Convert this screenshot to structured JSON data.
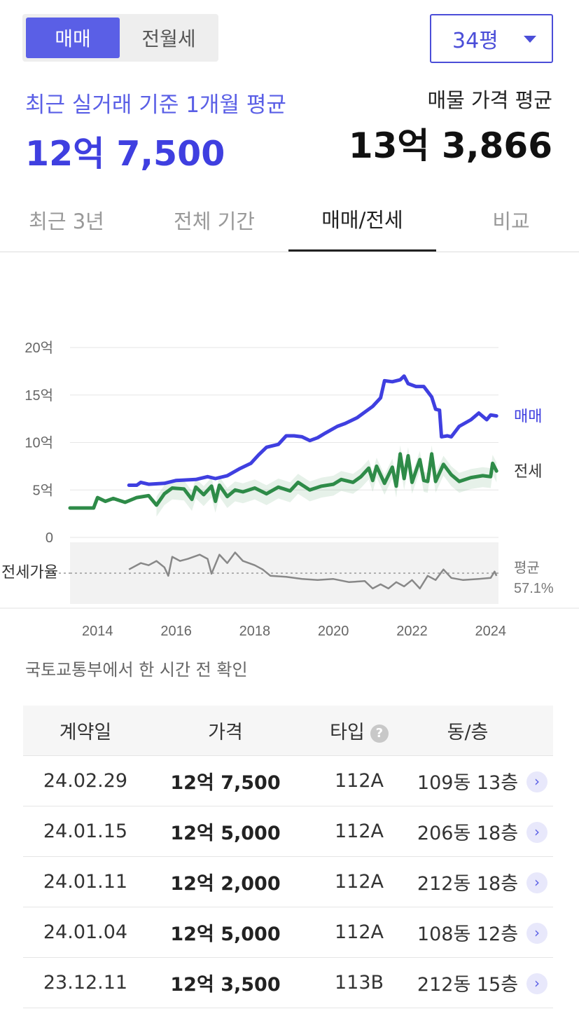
{
  "trade_toggle": {
    "active": "매매",
    "inactive": "전월세"
  },
  "size_select": {
    "value": "34평"
  },
  "summary": {
    "recent_label": "최근 실거래 기준 1개월 평균",
    "recent_value": "12억 7,500",
    "listing_label": "매물 가격 평균",
    "listing_value": "13억 3,866"
  },
  "tabs": [
    {
      "label": "최근 3년"
    },
    {
      "label": "전체 기간"
    },
    {
      "label": "매매/전세"
    },
    {
      "label": "비교"
    }
  ],
  "chart_data": {
    "type": "line",
    "y_ticks": [
      "20억",
      "15억",
      "10억",
      "5억",
      "0"
    ],
    "ylim": [
      0,
      20
    ],
    "y_unit": "억",
    "x_ticks": [
      "2014",
      "2016",
      "2018",
      "2020",
      "2022",
      "2024"
    ],
    "xlim": [
      2013.3,
      2024.2
    ],
    "grid": true,
    "series": [
      {
        "name": "매매",
        "color": "#3f3fe0",
        "points": [
          [
            2014.8,
            5.5
          ],
          [
            2015.0,
            5.5
          ],
          [
            2015.1,
            5.8
          ],
          [
            2015.3,
            5.6
          ],
          [
            2015.7,
            5.7
          ],
          [
            2016.0,
            6.0
          ],
          [
            2016.5,
            6.1
          ],
          [
            2016.8,
            6.4
          ],
          [
            2017.0,
            6.2
          ],
          [
            2017.3,
            6.5
          ],
          [
            2017.6,
            7.2
          ],
          [
            2017.9,
            7.8
          ],
          [
            2018.1,
            8.7
          ],
          [
            2018.3,
            9.5
          ],
          [
            2018.6,
            9.8
          ],
          [
            2018.8,
            10.7
          ],
          [
            2019.0,
            10.7
          ],
          [
            2019.2,
            10.6
          ],
          [
            2019.4,
            10.2
          ],
          [
            2019.6,
            10.5
          ],
          [
            2019.8,
            11.0
          ],
          [
            2020.1,
            11.7
          ],
          [
            2020.3,
            12.0
          ],
          [
            2020.6,
            12.6
          ],
          [
            2020.8,
            13.2
          ],
          [
            2021.0,
            13.8
          ],
          [
            2021.2,
            14.7
          ],
          [
            2021.3,
            16.5
          ],
          [
            2021.5,
            16.4
          ],
          [
            2021.7,
            16.6
          ],
          [
            2021.8,
            17.0
          ],
          [
            2021.9,
            16.2
          ],
          [
            2022.1,
            15.9
          ],
          [
            2022.3,
            15.9
          ],
          [
            2022.5,
            14.8
          ],
          [
            2022.6,
            13.5
          ],
          [
            2022.7,
            13.4
          ],
          [
            2022.75,
            10.6
          ],
          [
            2022.9,
            10.7
          ],
          [
            2023.0,
            10.6
          ],
          [
            2023.2,
            11.7
          ],
          [
            2023.5,
            12.4
          ],
          [
            2023.7,
            13.1
          ],
          [
            2023.9,
            12.4
          ],
          [
            2024.0,
            12.9
          ],
          [
            2024.15,
            12.8
          ]
        ]
      },
      {
        "name": "전세",
        "color": "#2e8b48",
        "points": [
          [
            2013.3,
            3.1
          ],
          [
            2013.9,
            3.1
          ],
          [
            2014.0,
            4.2
          ],
          [
            2014.2,
            3.8
          ],
          [
            2014.4,
            4.1
          ],
          [
            2014.7,
            3.7
          ],
          [
            2015.0,
            4.2
          ],
          [
            2015.3,
            4.4
          ],
          [
            2015.5,
            3.4
          ],
          [
            2015.7,
            4.6
          ],
          [
            2015.9,
            5.2
          ],
          [
            2016.2,
            5.1
          ],
          [
            2016.4,
            4.0
          ],
          [
            2016.5,
            5.3
          ],
          [
            2016.7,
            4.5
          ],
          [
            2016.9,
            5.4
          ],
          [
            2017.0,
            3.8
          ],
          [
            2017.1,
            5.5
          ],
          [
            2017.3,
            4.3
          ],
          [
            2017.5,
            5.0
          ],
          [
            2017.7,
            4.8
          ],
          [
            2018.0,
            5.2
          ],
          [
            2018.3,
            4.6
          ],
          [
            2018.6,
            5.3
          ],
          [
            2018.9,
            4.9
          ],
          [
            2019.1,
            5.8
          ],
          [
            2019.4,
            5.0
          ],
          [
            2019.7,
            5.4
          ],
          [
            2020.0,
            5.6
          ],
          [
            2020.2,
            6.1
          ],
          [
            2020.5,
            5.8
          ],
          [
            2020.7,
            6.4
          ],
          [
            2020.9,
            7.3
          ],
          [
            2021.0,
            6.0
          ],
          [
            2021.1,
            7.5
          ],
          [
            2021.3,
            5.7
          ],
          [
            2021.5,
            7.4
          ],
          [
            2021.6,
            5.4
          ],
          [
            2021.7,
            8.8
          ],
          [
            2021.8,
            6.2
          ],
          [
            2021.9,
            8.6
          ],
          [
            2022.0,
            5.8
          ],
          [
            2022.2,
            8.2
          ],
          [
            2022.3,
            6.0
          ],
          [
            2022.4,
            5.9
          ],
          [
            2022.5,
            8.8
          ],
          [
            2022.6,
            5.9
          ],
          [
            2022.8,
            7.7
          ],
          [
            2023.0,
            6.6
          ],
          [
            2023.2,
            5.9
          ],
          [
            2023.5,
            6.3
          ],
          [
            2023.8,
            6.5
          ],
          [
            2024.0,
            6.4
          ],
          [
            2024.05,
            7.8
          ],
          [
            2024.15,
            7.0
          ]
        ]
      }
    ],
    "ratio_panel": {
      "label": "전세가율",
      "average_label": "평균",
      "average_value": "57.1%",
      "color": "#888888",
      "points": [
        [
          2014.8,
          56
        ],
        [
          2015.1,
          62
        ],
        [
          2015.3,
          60
        ],
        [
          2015.5,
          64
        ],
        [
          2015.7,
          58
        ],
        [
          2015.8,
          50
        ],
        [
          2015.9,
          68
        ],
        [
          2016.1,
          64
        ],
        [
          2016.3,
          66
        ],
        [
          2016.6,
          70
        ],
        [
          2016.8,
          66
        ],
        [
          2016.9,
          52
        ],
        [
          2017.1,
          70
        ],
        [
          2017.3,
          62
        ],
        [
          2017.5,
          72
        ],
        [
          2017.7,
          64
        ],
        [
          2018.0,
          60
        ],
        [
          2018.2,
          56
        ],
        [
          2018.4,
          50
        ],
        [
          2018.8,
          49
        ],
        [
          2019.2,
          47
        ],
        [
          2019.6,
          46
        ],
        [
          2020.0,
          47
        ],
        [
          2020.4,
          44
        ],
        [
          2020.8,
          45
        ],
        [
          2021.0,
          38
        ],
        [
          2021.2,
          42
        ],
        [
          2021.4,
          38
        ],
        [
          2021.6,
          44
        ],
        [
          2021.8,
          40
        ],
        [
          2022.0,
          46
        ],
        [
          2022.2,
          38
        ],
        [
          2022.4,
          50
        ],
        [
          2022.6,
          46
        ],
        [
          2022.8,
          56
        ],
        [
          2023.0,
          48
        ],
        [
          2023.3,
          46
        ],
        [
          2023.7,
          47
        ],
        [
          2024.0,
          48
        ],
        [
          2024.1,
          54
        ],
        [
          2024.15,
          50
        ]
      ]
    }
  },
  "source_note": "국토교통부에서 한 시간 전 확인",
  "table": {
    "headers": {
      "date": "계약일",
      "price": "가격",
      "type": "타입",
      "unit": "동/층"
    },
    "help_icon": "?",
    "rows": [
      {
        "date": "24.02.29",
        "price": "12억 7,500",
        "type": "112A",
        "unit": "109동 13층"
      },
      {
        "date": "24.01.15",
        "price": "12억 5,000",
        "type": "112A",
        "unit": "206동 18층"
      },
      {
        "date": "24.01.11",
        "price": "12억 2,000",
        "type": "112A",
        "unit": "212동 18층"
      },
      {
        "date": "24.01.04",
        "price": "12억 5,000",
        "type": "112A",
        "unit": "108동 12층"
      },
      {
        "date": "23.12.11",
        "price": "12억 3,500",
        "type": "113B",
        "unit": "212동 15층"
      }
    ],
    "row_arrow": "›"
  }
}
